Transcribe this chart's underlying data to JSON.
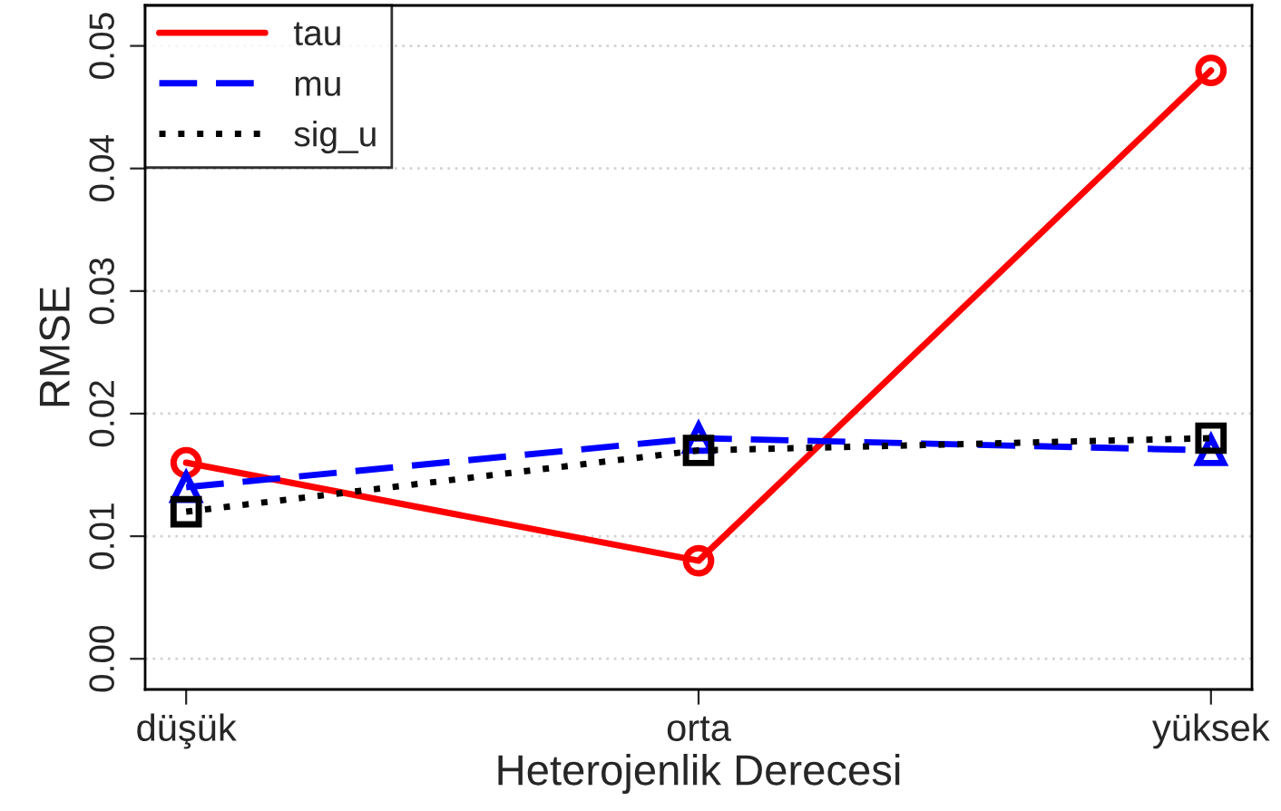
{
  "chart_data": {
    "type": "line",
    "xlabel": "Heterojenlik Derecesi",
    "ylabel": "RMSE",
    "categories": [
      "düşük",
      "orta",
      "yüksek"
    ],
    "series": [
      {
        "name": "tau",
        "color": "#ff0000",
        "values": [
          0.016,
          0.008,
          0.048
        ],
        "marker": "circle",
        "line_style": "solid"
      },
      {
        "name": "mu",
        "color": "#0000ff",
        "values": [
          0.014,
          0.018,
          0.017
        ],
        "marker": "triangle",
        "line_style": "dashed"
      },
      {
        "name": "sig_u",
        "color": "#000000",
        "values": [
          0.012,
          0.017,
          0.018
        ],
        "marker": "square",
        "line_style": "dotted"
      }
    ],
    "ylim": [
      -0.0025,
      0.0533
    ],
    "yticks": [
      {
        "value": 0,
        "label": "0.00"
      },
      0.01,
      0.02,
      0.03,
      0.04,
      0.05
    ],
    "grid": "y",
    "legend": "top left"
  }
}
